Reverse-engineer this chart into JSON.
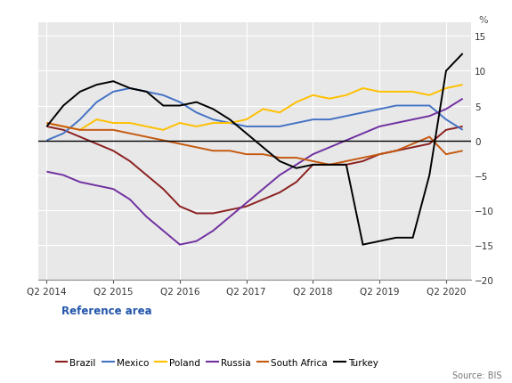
{
  "ylabel": "%",
  "source": "Source: BIS",
  "legend_title": "Reference area",
  "fig_facecolor": "#ffffff",
  "plot_facecolor": "#e8e8e8",
  "ylim": [
    -20,
    17
  ],
  "yticks": [
    -20,
    -15,
    -10,
    -5,
    0,
    5,
    10,
    15
  ],
  "x_tick_indices": [
    0,
    4,
    8,
    12,
    16,
    20,
    24
  ],
  "x_labels": [
    "Q2 2014",
    "Q2 2015",
    "Q2 2016",
    "Q2 2017",
    "Q2 2018",
    "Q2 2019",
    "Q2 2020"
  ],
  "n_points": 26,
  "series_order": [
    "Brazil",
    "Mexico",
    "Poland",
    "Russia",
    "South Africa",
    "Turkey"
  ],
  "series": {
    "Brazil": {
      "color": "#8b2020",
      "values": [
        2.0,
        1.5,
        0.5,
        -0.5,
        -1.5,
        -3.0,
        -5.0,
        -7.0,
        -9.5,
        -10.5,
        -10.5,
        -10.0,
        -9.5,
        -8.5,
        -7.5,
        -6.0,
        -3.5,
        -3.5,
        -3.5,
        -3.0,
        -2.0,
        -1.5,
        -1.0,
        -0.5,
        1.5,
        2.0
      ]
    },
    "Mexico": {
      "color": "#4472c4",
      "values": [
        0.0,
        1.0,
        3.0,
        5.5,
        7.0,
        7.5,
        7.0,
        6.5,
        5.5,
        4.0,
        3.0,
        2.5,
        2.0,
        2.0,
        2.0,
        2.5,
        3.0,
        3.0,
        3.5,
        4.0,
        4.5,
        5.0,
        5.0,
        5.0,
        3.0,
        1.5
      ]
    },
    "Poland": {
      "color": "#ffc000",
      "values": [
        2.5,
        2.0,
        1.5,
        3.0,
        2.5,
        2.5,
        2.0,
        1.5,
        2.5,
        2.0,
        2.5,
        2.5,
        3.0,
        4.5,
        4.0,
        5.5,
        6.5,
        6.0,
        6.5,
        7.5,
        7.0,
        7.0,
        7.0,
        6.5,
        7.5,
        8.0
      ]
    },
    "Russia": {
      "color": "#7030a0",
      "values": [
        -4.5,
        -5.0,
        -6.0,
        -6.5,
        -7.0,
        -8.5,
        -11.0,
        -13.0,
        -15.0,
        -14.5,
        -13.0,
        -11.0,
        -9.0,
        -7.0,
        -5.0,
        -3.5,
        -2.0,
        -1.0,
        0.0,
        1.0,
        2.0,
        2.5,
        3.0,
        3.5,
        4.5,
        6.0
      ]
    },
    "South Africa": {
      "color": "#c55a11",
      "values": [
        2.5,
        2.0,
        1.5,
        1.5,
        1.5,
        1.0,
        0.5,
        0.0,
        -0.5,
        -1.0,
        -1.5,
        -1.5,
        -2.0,
        -2.0,
        -2.5,
        -2.5,
        -3.0,
        -3.5,
        -3.0,
        -2.5,
        -2.0,
        -1.5,
        -0.5,
        0.5,
        -2.0,
        -1.5
      ]
    },
    "Turkey": {
      "color": "#000000",
      "values": [
        2.0,
        5.0,
        7.0,
        8.0,
        8.5,
        7.5,
        7.0,
        5.0,
        5.0,
        5.5,
        4.5,
        3.0,
        1.0,
        -1.0,
        -3.0,
        -4.0,
        -3.5,
        -3.5,
        -3.5,
        -15.0,
        -14.5,
        -14.0,
        -14.0,
        -5.0,
        10.0,
        12.5
      ]
    }
  }
}
